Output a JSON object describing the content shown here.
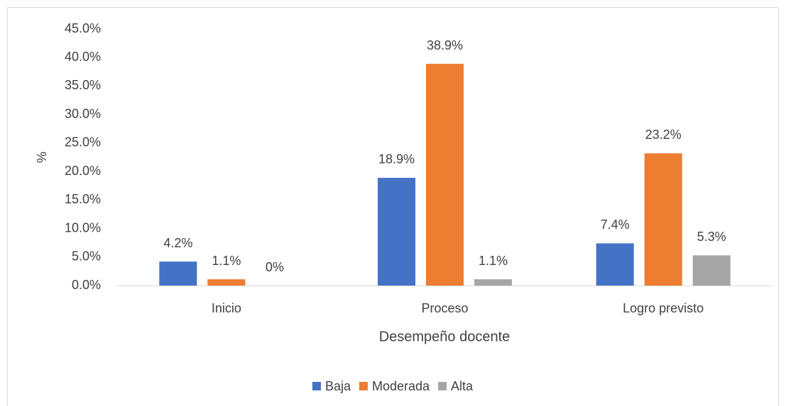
{
  "chart_data": {
    "type": "bar",
    "y_label": "%",
    "x_label": "Desempeño docente",
    "categories": [
      "Inicio",
      "Proceso",
      "Logro previsto"
    ],
    "series": [
      {
        "name": "Baja",
        "color": "#4472c4",
        "values": [
          4.2,
          18.9,
          7.4
        ],
        "value_labels": [
          "4.2%",
          "18.9%",
          "7.4%"
        ]
      },
      {
        "name": "Moderada",
        "color": "#ed7d31",
        "values": [
          1.1,
          38.9,
          23.2
        ],
        "value_labels": [
          "1.1%",
          "38.9%",
          "23.2%"
        ]
      },
      {
        "name": "Alta",
        "color": "#a5a5a5",
        "values": [
          0,
          1.1,
          5.3
        ],
        "value_labels": [
          "0%",
          "1.1%",
          "5.3%"
        ]
      }
    ],
    "ylim": [
      0,
      45
    ],
    "yticks": [
      {
        "value": 0,
        "label": "0.0%"
      },
      {
        "value": 5,
        "label": "5.0%"
      },
      {
        "value": 10,
        "label": "10.0%"
      },
      {
        "value": 15,
        "label": "15.0%"
      },
      {
        "value": 20,
        "label": "20.0%"
      },
      {
        "value": 25,
        "label": "25.0%"
      },
      {
        "value": 30,
        "label": "30.0%"
      },
      {
        "value": 35,
        "label": "35.0%"
      },
      {
        "value": 40,
        "label": "40.0%"
      },
      {
        "value": 45,
        "label": "45.0%"
      }
    ],
    "grid": false,
    "legend": "bottom"
  }
}
